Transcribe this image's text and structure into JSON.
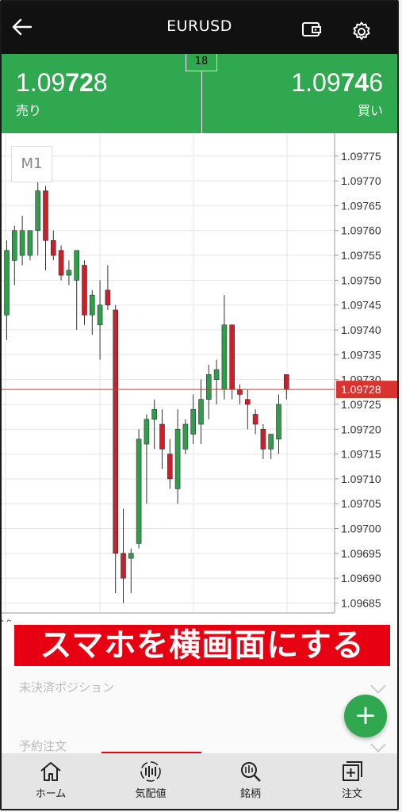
{
  "header": {
    "title": "EURUSD"
  },
  "prices": {
    "bid": {
      "pre": "1.09",
      "big": "72",
      "post": "8",
      "label": "売り"
    },
    "ask": {
      "pre": "1.09",
      "big": "74",
      "post": "6",
      "label": "買い"
    },
    "spread": "18"
  },
  "timeframe": "M1",
  "colors": {
    "up": "#2e9e4a",
    "down": "#cc1f2b",
    "accent_green": "#2fa84f",
    "banner_red": "#e60012"
  },
  "chart_data": {
    "type": "candlestick",
    "y_ticks": [
      "1.09775",
      "1.09770",
      "1.09765",
      "1.09760",
      "1.09755",
      "1.09750",
      "1.09745",
      "1.09740",
      "1.09735",
      "1.09730",
      "1.09725",
      "1.09720",
      "1.09715",
      "1.09710",
      "1.09705",
      "1.09700",
      "1.09695",
      "1.09690",
      "1.09685"
    ],
    "ylim": [
      1.09683,
      1.09778
    ],
    "current_price": "1.09728",
    "x_label_partial": "3:0",
    "candles": [
      {
        "o": 1.09743,
        "h": 1.09758,
        "l": 1.09738,
        "c": 1.09756
      },
      {
        "o": 1.09754,
        "h": 1.09761,
        "l": 1.09749,
        "c": 1.0976
      },
      {
        "o": 1.09755,
        "h": 1.09763,
        "l": 1.09753,
        "c": 1.0976
      },
      {
        "o": 1.09755,
        "h": 1.0976,
        "l": 1.09754,
        "c": 1.0976
      },
      {
        "o": 1.0976,
        "h": 1.0977,
        "l": 1.09755,
        "c": 1.09768
      },
      {
        "o": 1.09768,
        "h": 1.09769,
        "l": 1.09752,
        "c": 1.09758
      },
      {
        "o": 1.09758,
        "h": 1.0976,
        "l": 1.09754,
        "c": 1.09755
      },
      {
        "o": 1.09756,
        "h": 1.09757,
        "l": 1.0975,
        "c": 1.09751
      },
      {
        "o": 1.09751,
        "h": 1.09754,
        "l": 1.09749,
        "c": 1.09752
      },
      {
        "o": 1.0975,
        "h": 1.09756,
        "l": 1.0974,
        "c": 1.09756
      },
      {
        "o": 1.09753,
        "h": 1.09754,
        "l": 1.09741,
        "c": 1.09743
      },
      {
        "o": 1.09743,
        "h": 1.09748,
        "l": 1.09739,
        "c": 1.09747
      },
      {
        "o": 1.09741,
        "h": 1.0975,
        "l": 1.09734,
        "c": 1.09745
      },
      {
        "o": 1.09748,
        "h": 1.09753,
        "l": 1.09744,
        "c": 1.09745
      },
      {
        "o": 1.09744,
        "h": 1.09745,
        "l": 1.09687,
        "c": 1.09695
      },
      {
        "o": 1.09695,
        "h": 1.09704,
        "l": 1.09685,
        "c": 1.0969
      },
      {
        "o": 1.09694,
        "h": 1.09696,
        "l": 1.09687,
        "c": 1.09695
      },
      {
        "o": 1.09697,
        "h": 1.0972,
        "l": 1.09696,
        "c": 1.09718
      },
      {
        "o": 1.09717,
        "h": 1.09723,
        "l": 1.09705,
        "c": 1.09722
      },
      {
        "o": 1.09722,
        "h": 1.09726,
        "l": 1.09716,
        "c": 1.09724
      },
      {
        "o": 1.09721,
        "h": 1.09724,
        "l": 1.09712,
        "c": 1.09716
      },
      {
        "o": 1.09715,
        "h": 1.09718,
        "l": 1.09708,
        "c": 1.0971
      },
      {
        "o": 1.09708,
        "h": 1.09724,
        "l": 1.09705,
        "c": 1.0972
      },
      {
        "o": 1.09716,
        "h": 1.09722,
        "l": 1.09715,
        "c": 1.09721
      },
      {
        "o": 1.09719,
        "h": 1.09727,
        "l": 1.09717,
        "c": 1.09724
      },
      {
        "o": 1.09721,
        "h": 1.0973,
        "l": 1.09717,
        "c": 1.09726
      },
      {
        "o": 1.09726,
        "h": 1.09733,
        "l": 1.09722,
        "c": 1.09731
      },
      {
        "o": 1.0973,
        "h": 1.09734,
        "l": 1.09725,
        "c": 1.09732
      },
      {
        "o": 1.09728,
        "h": 1.09747,
        "l": 1.09726,
        "c": 1.09741
      },
      {
        "o": 1.09741,
        "h": 1.09741,
        "l": 1.09726,
        "c": 1.09728
      },
      {
        "o": 1.09728,
        "h": 1.09729,
        "l": 1.09725,
        "c": 1.09727
      },
      {
        "o": 1.09726,
        "h": 1.09728,
        "l": 1.0972,
        "c": 1.09725
      },
      {
        "o": 1.09723,
        "h": 1.09724,
        "l": 1.09719,
        "c": 1.09721
      },
      {
        "o": 1.0972,
        "h": 1.09721,
        "l": 1.09714,
        "c": 1.09716
      },
      {
        "o": 1.09716,
        "h": 1.09719,
        "l": 1.09714,
        "c": 1.09719
      },
      {
        "o": 1.09718,
        "h": 1.09727,
        "l": 1.09715,
        "c": 1.09725
      },
      {
        "o": 1.09731,
        "h": 1.09731,
        "l": 1.09726,
        "c": 1.09728
      }
    ]
  },
  "banner": "スマホを横画面にする",
  "panel": {
    "positions": "未決済ポジション",
    "orders": "予約注文"
  },
  "tabs": [
    "ホーム",
    "気配値",
    "銘柄",
    "注文"
  ]
}
